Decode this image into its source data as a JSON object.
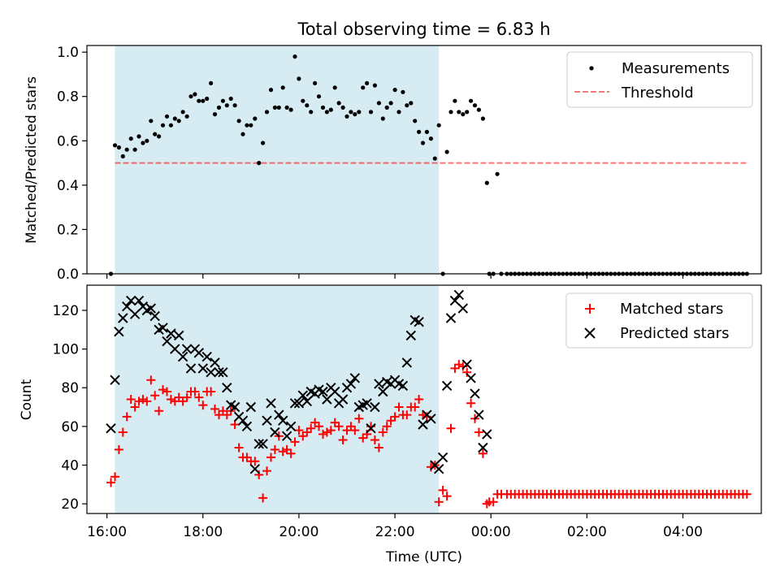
{
  "title": "Total observing time = 6.83 h",
  "colors": {
    "shade": "#add8e6",
    "threshold": "#ff0000",
    "matched": "#ff0000",
    "predicted": "#000000",
    "measurements": "#000000"
  },
  "chart_data": [
    {
      "type": "scatter",
      "ylabel": "Matched/Predicted stars",
      "ylim": [
        0,
        1.03
      ],
      "yticks": [
        0.0,
        0.2,
        0.4,
        0.6,
        0.8,
        1.0
      ],
      "ytick_labels": [
        "0.0",
        "0.2",
        "0.4",
        "0.6",
        "0.8",
        "1.0"
      ],
      "xlim": [
        "15:35",
        "05:38"
      ],
      "shaded_range": [
        "16:10",
        "22:55"
      ],
      "legend": [
        "Measurements",
        "Threshold"
      ],
      "legend_position": "upper right",
      "threshold": {
        "name": "Threshold",
        "value": 0.5,
        "x_range": [
          "16:10",
          "05:20"
        ]
      },
      "series": [
        {
          "name": "Measurements",
          "marker": "dot",
          "x": [
            "16:05",
            "16:10",
            "16:15",
            "16:20",
            "16:25",
            "16:30",
            "16:35",
            "16:40",
            "16:45",
            "16:50",
            "16:55",
            "17:00",
            "17:05",
            "17:10",
            "17:15",
            "17:20",
            "17:25",
            "17:30",
            "17:35",
            "17:40",
            "17:45",
            "17:50",
            "17:55",
            "18:00",
            "18:05",
            "18:10",
            "18:15",
            "18:20",
            "18:25",
            "18:30",
            "18:35",
            "18:40",
            "18:45",
            "18:50",
            "18:55",
            "19:00",
            "19:05",
            "19:10",
            "19:15",
            "19:20",
            "19:25",
            "19:30",
            "19:35",
            "19:40",
            "19:45",
            "19:50",
            "19:55",
            "20:00",
            "20:05",
            "20:10",
            "20:15",
            "20:20",
            "20:25",
            "20:30",
            "20:35",
            "20:40",
            "20:45",
            "20:50",
            "20:55",
            "21:00",
            "21:05",
            "21:10",
            "21:15",
            "21:20",
            "21:25",
            "21:30",
            "21:35",
            "21:40",
            "21:45",
            "21:50",
            "21:55",
            "22:00",
            "22:05",
            "22:10",
            "22:15",
            "22:20",
            "22:25",
            "22:30",
            "22:35",
            "22:40",
            "22:45",
            "22:50",
            "22:55",
            "23:00",
            "23:05",
            "23:10",
            "23:15",
            "23:20",
            "23:25",
            "23:30",
            "23:35",
            "23:40",
            "23:45",
            "23:50",
            "23:55",
            "23:58",
            "00:03",
            "00:08",
            "00:13",
            "00:20",
            "00:25",
            "00:30",
            "00:35",
            "00:40",
            "00:45",
            "00:50",
            "00:55",
            "01:00",
            "01:05",
            "01:10",
            "01:15",
            "01:20",
            "01:25",
            "01:30",
            "01:35",
            "01:40",
            "01:45",
            "01:50",
            "01:55",
            "02:00",
            "02:05",
            "02:10",
            "02:15",
            "02:20",
            "02:25",
            "02:30",
            "02:35",
            "02:40",
            "02:45",
            "02:50",
            "02:55",
            "03:00",
            "03:05",
            "03:10",
            "03:15",
            "03:20",
            "03:25",
            "03:30",
            "03:35",
            "03:40",
            "03:45",
            "03:50",
            "03:55",
            "04:00",
            "04:05",
            "04:10",
            "04:15",
            "04:20",
            "04:25",
            "04:30",
            "04:35",
            "04:40",
            "04:45",
            "04:50",
            "04:55",
            "05:00",
            "05:05",
            "05:10",
            "05:15",
            "05:20"
          ],
          "y": [
            0.0,
            0.58,
            0.57,
            0.53,
            0.56,
            0.61,
            0.56,
            0.62,
            0.59,
            0.6,
            0.69,
            0.63,
            0.62,
            0.67,
            0.71,
            0.67,
            0.7,
            0.69,
            0.73,
            0.71,
            0.8,
            0.81,
            0.78,
            0.78,
            0.79,
            0.86,
            0.72,
            0.75,
            0.78,
            0.76,
            0.79,
            0.76,
            0.69,
            0.63,
            0.67,
            0.67,
            0.7,
            0.5,
            0.59,
            0.73,
            0.83,
            0.75,
            0.75,
            0.84,
            0.75,
            0.74,
            0.98,
            0.88,
            0.78,
            0.76,
            0.73,
            0.86,
            0.8,
            0.75,
            0.73,
            0.74,
            0.84,
            0.77,
            0.75,
            0.71,
            0.73,
            0.72,
            0.73,
            0.84,
            0.86,
            0.73,
            0.85,
            0.77,
            0.7,
            0.75,
            0.77,
            0.83,
            0.73,
            0.82,
            0.76,
            0.77,
            0.69,
            0.64,
            0.59,
            0.64,
            0.61,
            0.52,
            0.67,
            0.0,
            0.55,
            0.73,
            0.78,
            0.73,
            0.72,
            0.73,
            0.78,
            0.76,
            0.74,
            0.7,
            0.41,
            0.0,
            0.0,
            0.45,
            0.0,
            0.0,
            0.0,
            0.0,
            0.0,
            0.0,
            0.0,
            0.0,
            0.0,
            0.0,
            0.0,
            0.0,
            0.0,
            0.0,
            0.0,
            0.0,
            0.0,
            0.0,
            0.0,
            0.0,
            0.0,
            0.0,
            0.0,
            0.0,
            0.0,
            0.0,
            0.0,
            0.0,
            0.0,
            0.0,
            0.0,
            0.0,
            0.0,
            0.0,
            0.0,
            0.0,
            0.0,
            0.0,
            0.0,
            0.0,
            0.0,
            0.0,
            0.0,
            0.0,
            0.0,
            0.0,
            0.0,
            0.0,
            0.0,
            0.0,
            0.0,
            0.0,
            0.0,
            0.0,
            0.0,
            0.0,
            0.0,
            0.0,
            0.0,
            0.0,
            0.0,
            0.0
          ]
        }
      ]
    },
    {
      "type": "scatter",
      "xlabel": "Time (UTC)",
      "ylabel": "Count",
      "ylim": [
        15,
        133
      ],
      "yticks": [
        20,
        40,
        60,
        80,
        100,
        120
      ],
      "ytick_labels": [
        "20",
        "40",
        "60",
        "80",
        "100",
        "120"
      ],
      "xlim": [
        "15:35",
        "05:38"
      ],
      "xticks": [
        "16:00",
        "18:00",
        "20:00",
        "22:00",
        "00:00",
        "02:00",
        "04:00"
      ],
      "shaded_range": [
        "16:10",
        "22:55"
      ],
      "legend": [
        "Matched stars",
        "Predicted stars"
      ],
      "legend_position": "upper right",
      "series": [
        {
          "name": "Matched stars",
          "marker": "plus",
          "x": [
            "16:05",
            "16:10",
            "16:15",
            "16:20",
            "16:25",
            "16:30",
            "16:35",
            "16:40",
            "16:45",
            "16:50",
            "16:55",
            "17:00",
            "17:05",
            "17:10",
            "17:15",
            "17:20",
            "17:25",
            "17:30",
            "17:35",
            "17:40",
            "17:45",
            "17:50",
            "17:55",
            "18:00",
            "18:05",
            "18:10",
            "18:15",
            "18:20",
            "18:25",
            "18:30",
            "18:35",
            "18:40",
            "18:45",
            "18:50",
            "18:55",
            "19:00",
            "19:05",
            "19:10",
            "19:15",
            "19:20",
            "19:25",
            "19:30",
            "19:35",
            "19:40",
            "19:45",
            "19:50",
            "19:55",
            "20:00",
            "20:05",
            "20:10",
            "20:15",
            "20:20",
            "20:25",
            "20:30",
            "20:35",
            "20:40",
            "20:45",
            "20:50",
            "20:55",
            "21:00",
            "21:05",
            "21:10",
            "21:15",
            "21:20",
            "21:25",
            "21:30",
            "21:35",
            "21:40",
            "21:45",
            "21:50",
            "21:55",
            "22:00",
            "22:05",
            "22:10",
            "22:15",
            "22:20",
            "22:25",
            "22:30",
            "22:35",
            "22:40",
            "22:45",
            "22:50",
            "22:55",
            "23:00",
            "23:05",
            "23:10",
            "23:15",
            "23:20",
            "23:25",
            "23:30",
            "23:35",
            "23:40",
            "23:45",
            "23:50",
            "23:55",
            "23:58",
            "00:03",
            "00:08",
            "00:13",
            "00:20",
            "00:25",
            "00:30",
            "00:35",
            "00:40",
            "00:45",
            "00:50",
            "00:55",
            "01:00",
            "01:05",
            "01:10",
            "01:15",
            "01:20",
            "01:25",
            "01:30",
            "01:35",
            "01:40",
            "01:45",
            "01:50",
            "01:55",
            "02:00",
            "02:05",
            "02:10",
            "02:15",
            "02:20",
            "02:25",
            "02:30",
            "02:35",
            "02:40",
            "02:45",
            "02:50",
            "02:55",
            "03:00",
            "03:05",
            "03:10",
            "03:15",
            "03:20",
            "03:25",
            "03:30",
            "03:35",
            "03:40",
            "03:45",
            "03:50",
            "03:55",
            "04:00",
            "04:05",
            "04:10",
            "04:15",
            "04:20",
            "04:25",
            "04:30",
            "04:35",
            "04:40",
            "04:45",
            "04:50",
            "04:55",
            "05:00",
            "05:05",
            "05:10",
            "05:15",
            "05:20"
          ],
          "y": [
            31,
            34,
            48,
            57,
            65,
            74,
            70,
            73,
            74,
            73,
            84,
            76,
            68,
            79,
            78,
            74,
            73,
            75,
            73,
            75,
            78,
            78,
            75,
            71,
            78,
            78,
            69,
            66,
            68,
            66,
            68,
            61,
            49,
            44,
            44,
            42,
            42,
            35,
            23,
            37,
            44,
            48,
            55,
            47,
            48,
            46,
            52,
            58,
            55,
            57,
            59,
            62,
            60,
            56,
            57,
            58,
            62,
            60,
            53,
            58,
            60,
            58,
            64,
            54,
            56,
            60,
            53,
            49,
            57,
            60,
            63,
            65,
            70,
            66,
            66,
            70,
            70,
            74,
            66,
            65,
            39,
            40,
            21,
            27,
            24,
            59,
            90,
            92,
            91,
            88,
            72,
            64,
            57,
            46,
            20,
            21,
            21,
            25,
            25,
            25,
            25,
            25,
            25,
            25,
            25,
            25,
            25,
            25,
            25,
            25,
            25,
            25,
            25,
            25,
            25,
            25,
            25,
            25,
            25,
            25,
            25,
            25,
            25,
            25,
            25,
            25,
            25,
            25,
            25,
            25,
            25,
            25,
            25,
            25,
            25,
            25,
            25,
            25,
            25,
            25,
            25,
            25,
            25,
            25,
            25,
            25,
            25,
            25,
            25,
            25,
            25,
            25,
            25,
            25,
            25,
            25,
            25,
            25,
            25,
            25
          ]
        },
        {
          "name": "Predicted stars",
          "marker": "x",
          "x": [
            "16:05",
            "16:10",
            "16:15",
            "16:20",
            "16:25",
            "16:30",
            "16:35",
            "16:40",
            "16:45",
            "16:50",
            "16:55",
            "17:00",
            "17:05",
            "17:10",
            "17:15",
            "17:20",
            "17:25",
            "17:30",
            "17:35",
            "17:40",
            "17:45",
            "17:50",
            "17:55",
            "18:00",
            "18:05",
            "18:10",
            "18:15",
            "18:20",
            "18:25",
            "18:30",
            "18:35",
            "18:40",
            "18:45",
            "18:50",
            "18:55",
            "19:00",
            "19:05",
            "19:10",
            "19:15",
            "19:20",
            "19:25",
            "19:30",
            "19:35",
            "19:40",
            "19:45",
            "19:50",
            "19:55",
            "20:00",
            "20:05",
            "20:10",
            "20:15",
            "20:20",
            "20:25",
            "20:30",
            "20:35",
            "20:40",
            "20:45",
            "20:50",
            "20:55",
            "21:00",
            "21:05",
            "21:10",
            "21:15",
            "21:20",
            "21:25",
            "21:30",
            "21:35",
            "21:40",
            "21:45",
            "21:50",
            "21:55",
            "22:00",
            "22:05",
            "22:10",
            "22:15",
            "22:20",
            "22:25",
            "22:30",
            "22:35",
            "22:40",
            "22:45",
            "22:50",
            "22:55",
            "23:00",
            "23:05",
            "23:10",
            "23:15",
            "23:20",
            "23:25",
            "23:30",
            "23:35",
            "23:40",
            "23:45",
            "23:50",
            "23:55"
          ],
          "y": [
            59,
            84,
            109,
            116,
            122,
            125,
            118,
            125,
            122,
            120,
            121,
            117,
            110,
            111,
            104,
            108,
            100,
            107,
            96,
            100,
            90,
            100,
            98,
            90,
            96,
            88,
            93,
            88,
            88,
            80,
            71,
            70,
            65,
            63,
            60,
            70,
            38,
            51,
            51,
            63,
            72,
            57,
            66,
            63,
            55,
            60,
            72,
            72,
            76,
            73,
            78,
            77,
            79,
            78,
            74,
            80,
            78,
            72,
            74,
            80,
            82,
            85,
            70,
            71,
            72,
            59,
            70,
            82,
            78,
            83,
            82,
            84,
            82,
            81,
            93,
            107,
            115,
            114,
            61,
            66,
            64,
            40,
            38,
            44,
            81,
            116,
            125,
            128,
            121,
            92,
            85,
            77,
            66,
            49,
            56
          ]
        }
      ]
    }
  ]
}
